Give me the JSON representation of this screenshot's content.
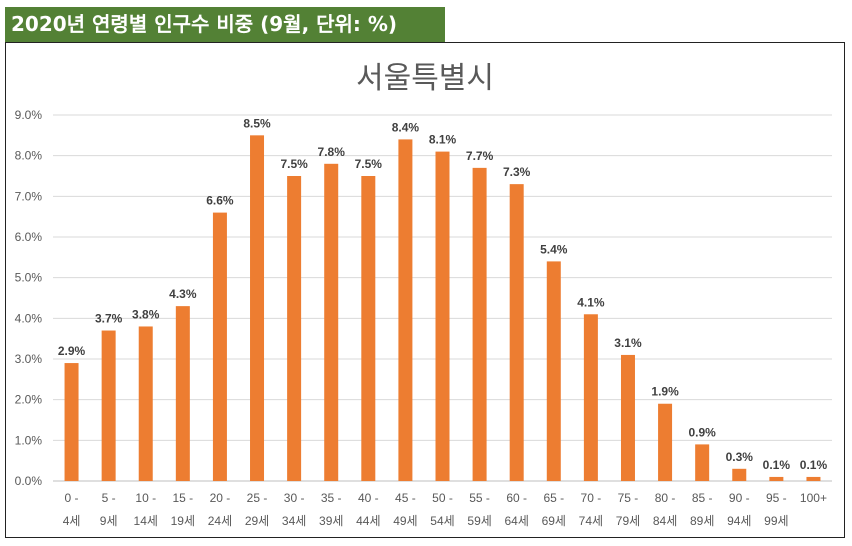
{
  "header": {
    "title": "2020년 연령별 인구수 비중 (9월, 단위: %)"
  },
  "chart_data": {
    "type": "bar",
    "title": "서울특별시",
    "xlabel": "",
    "ylabel": "",
    "ylim": [
      0,
      9
    ],
    "yticks": [
      "0.0%",
      "1.0%",
      "2.0%",
      "3.0%",
      "4.0%",
      "5.0%",
      "6.0%",
      "7.0%",
      "8.0%",
      "9.0%"
    ],
    "grid": true,
    "color": "#ED7D31",
    "categories": [
      [
        "0 -",
        "4세"
      ],
      [
        "5 -",
        "9세"
      ],
      [
        "10 -",
        "14세"
      ],
      [
        "15 -",
        "19세"
      ],
      [
        "20 -",
        "24세"
      ],
      [
        "25 -",
        "29세"
      ],
      [
        "30 -",
        "34세"
      ],
      [
        "35 -",
        "39세"
      ],
      [
        "40 -",
        "44세"
      ],
      [
        "45 -",
        "49세"
      ],
      [
        "50 -",
        "54세"
      ],
      [
        "55 -",
        "59세"
      ],
      [
        "60 -",
        "64세"
      ],
      [
        "65 -",
        "69세"
      ],
      [
        "70 -",
        "74세"
      ],
      [
        "75 -",
        "79세"
      ],
      [
        "80 -",
        "84세"
      ],
      [
        "85 -",
        "89세"
      ],
      [
        "90 -",
        "94세"
      ],
      [
        "95 -",
        "99세"
      ],
      [
        "100+",
        ""
      ]
    ],
    "values": [
      2.9,
      3.7,
      3.8,
      4.3,
      6.6,
      8.5,
      7.5,
      7.8,
      7.5,
      8.4,
      8.1,
      7.7,
      7.3,
      5.4,
      4.1,
      3.1,
      1.9,
      0.9,
      0.3,
      0.1,
      0.1
    ],
    "labels": [
      "2.9%",
      "3.7%",
      "3.8%",
      "4.3%",
      "6.6%",
      "8.5%",
      "7.5%",
      "7.8%",
      "7.5%",
      "8.4%",
      "8.1%",
      "7.7%",
      "7.3%",
      "5.4%",
      "4.1%",
      "3.1%",
      "1.9%",
      "0.9%",
      "0.3%",
      "0.1%",
      "0.1%"
    ]
  }
}
